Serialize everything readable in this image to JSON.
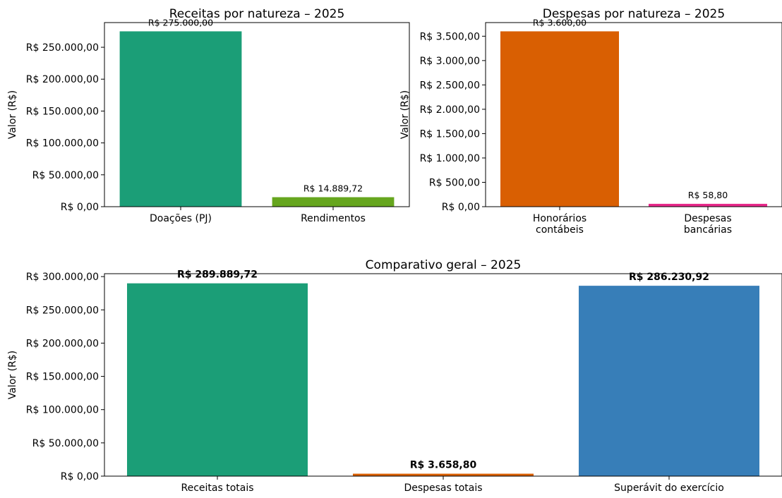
{
  "chart_data": [
    {
      "type": "bar",
      "title": "Receitas por natureza – 2025",
      "xlabel": "",
      "ylabel": "Valor (R$)",
      "ylim": [
        0,
        288750
      ],
      "yticks": [
        0,
        50000,
        100000,
        150000,
        200000,
        250000
      ],
      "ytick_labels": [
        "R$ 0,00",
        "R$ 50.000,00",
        "R$ 100.000,00",
        "R$ 150.000,00",
        "R$ 200.000,00",
        "R$ 250.000,00"
      ],
      "categories": [
        [
          "Doações (PJ)"
        ],
        [
          "Rendimentos"
        ]
      ],
      "values": [
        275000.0,
        14889.72
      ],
      "value_labels": [
        "R$ 275.000,00",
        "R$ 14.889,72"
      ],
      "colors": [
        "#1b9e77",
        "#66a61e"
      ],
      "grid": false,
      "bold_labels": false
    },
    {
      "type": "bar",
      "title": "Despesas por natureza – 2025",
      "xlabel": "",
      "ylabel": "Valor (R$)",
      "ylim": [
        0,
        3780
      ],
      "yticks": [
        0,
        500,
        1000,
        1500,
        2000,
        2500,
        3000,
        3500
      ],
      "ytick_labels": [
        "R$ 0,00",
        "R$ 500,00",
        "R$ 1.000,00",
        "R$ 1.500,00",
        "R$ 2.000,00",
        "R$ 2.500,00",
        "R$ 3.000,00",
        "R$ 3.500,00"
      ],
      "categories": [
        [
          "Honorários",
          "contábeis"
        ],
        [
          "Despesas",
          "bancárias"
        ]
      ],
      "values": [
        3600.0,
        58.8
      ],
      "value_labels": [
        "R$ 3.600,00",
        "R$ 58,80"
      ],
      "colors": [
        "#d95f02",
        "#e7298a"
      ],
      "grid": false,
      "bold_labels": false
    },
    {
      "type": "bar",
      "title": "Comparativo geral – 2025",
      "xlabel": "",
      "ylabel": "Valor (R$)",
      "ylim": [
        0,
        304384
      ],
      "yticks": [
        0,
        50000,
        100000,
        150000,
        200000,
        250000,
        300000
      ],
      "ytick_labels": [
        "R$ 0,00",
        "R$ 50.000,00",
        "R$ 100.000,00",
        "R$ 150.000,00",
        "R$ 200.000,00",
        "R$ 250.000,00",
        "R$ 300.000,00"
      ],
      "categories": [
        [
          "Receitas totais"
        ],
        [
          "Despesas totais"
        ],
        [
          "Superávit do exercício"
        ]
      ],
      "values": [
        289889.72,
        3658.8,
        286230.92
      ],
      "value_labels": [
        "R$ 289.889,72",
        "R$ 3.658,80",
        "R$ 286.230,92"
      ],
      "colors": [
        "#1b9e77",
        "#d95f02",
        "#377eb8"
      ],
      "grid": false,
      "bold_labels": true
    }
  ]
}
